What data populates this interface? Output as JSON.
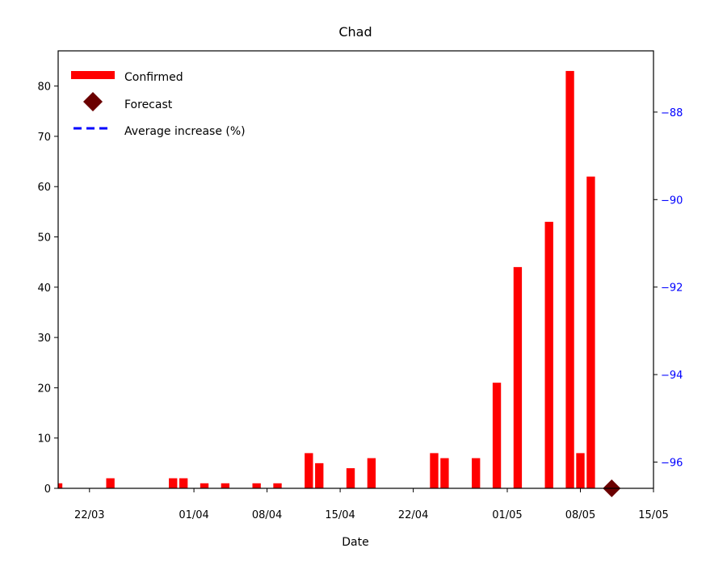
{
  "chart_data": {
    "type": "bar",
    "title": "Chad",
    "xlabel": "Date",
    "ylabel": "",
    "ylabel_right": "",
    "x_date_range": [
      "2020-03-19",
      "2020-05-15"
    ],
    "ylim": [
      0,
      87
    ],
    "ylim_right": [
      -96.6,
      -86.6
    ],
    "y_ticks": [
      0,
      10,
      20,
      30,
      40,
      50,
      60,
      70,
      80
    ],
    "y_ticks_right": [
      -96,
      -94,
      -92,
      -90,
      -88
    ],
    "x_ticks": [
      {
        "date": "2020-03-22",
        "label": "22/03"
      },
      {
        "date": "2020-04-01",
        "label": "01/04"
      },
      {
        "date": "2020-04-08",
        "label": "08/04"
      },
      {
        "date": "2020-04-15",
        "label": "15/04"
      },
      {
        "date": "2020-04-22",
        "label": "22/04"
      },
      {
        "date": "2020-05-01",
        "label": "01/05"
      },
      {
        "date": "2020-05-08",
        "label": "08/05"
      },
      {
        "date": "2020-05-15",
        "label": "15/05"
      }
    ],
    "legend": {
      "placement": "top-left",
      "entries": [
        {
          "label": "Confirmed",
          "kind": "bar",
          "color": "#ff0000"
        },
        {
          "label": "Forecast",
          "kind": "diamond",
          "color": "#6b0000"
        },
        {
          "label": "Average increase (%)",
          "kind": "dashed-line",
          "color": "#0000ff"
        }
      ]
    },
    "series": [
      {
        "name": "Confirmed",
        "color": "#ff0000",
        "points": [
          {
            "date": "2020-03-19",
            "value": 1
          },
          {
            "date": "2020-03-24",
            "value": 2
          },
          {
            "date": "2020-03-30",
            "value": 2
          },
          {
            "date": "2020-03-31",
            "value": 2
          },
          {
            "date": "2020-04-02",
            "value": 1
          },
          {
            "date": "2020-04-04",
            "value": 1
          },
          {
            "date": "2020-04-07",
            "value": 1
          },
          {
            "date": "2020-04-09",
            "value": 1
          },
          {
            "date": "2020-04-12",
            "value": 7
          },
          {
            "date": "2020-04-13",
            "value": 5
          },
          {
            "date": "2020-04-16",
            "value": 4
          },
          {
            "date": "2020-04-18",
            "value": 6
          },
          {
            "date": "2020-04-24",
            "value": 7
          },
          {
            "date": "2020-04-25",
            "value": 6
          },
          {
            "date": "2020-04-28",
            "value": 6
          },
          {
            "date": "2020-04-30",
            "value": 21
          },
          {
            "date": "2020-05-02",
            "value": 44
          },
          {
            "date": "2020-05-05",
            "value": 53
          },
          {
            "date": "2020-05-07",
            "value": 83
          },
          {
            "date": "2020-05-08",
            "value": 7
          },
          {
            "date": "2020-05-09",
            "value": 62
          }
        ]
      },
      {
        "name": "Forecast",
        "color": "#6b0000",
        "points": [
          {
            "date": "2020-05-11",
            "value": 0
          }
        ]
      }
    ],
    "grid": false
  }
}
